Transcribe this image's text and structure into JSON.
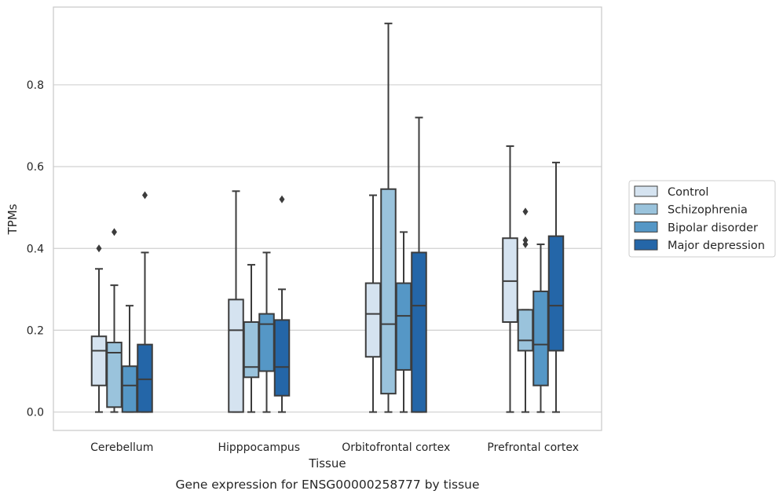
{
  "chart_data": {
    "type": "box",
    "ylabel": "TPMs",
    "xlabel": "Tissue",
    "caption": "Gene expression for ENSG00000258777 by tissue",
    "ylim": [
      -0.045,
      0.99
    ],
    "yticks": [
      "0.0",
      "0.2",
      "0.4",
      "0.6",
      "0.8"
    ],
    "grid": true,
    "legend_position": "right",
    "categories": [
      "Cerebellum",
      "Hipppocampus",
      "Orbitofrontal cortex",
      "Prefrontal cortex"
    ],
    "series": [
      {
        "name": "Control",
        "color": "#d5e3f0",
        "boxes": [
          {
            "whislo": 0.0,
            "q1": 0.065,
            "med": 0.15,
            "q3": 0.185,
            "whishi": 0.35,
            "fliers": [
              0.4
            ]
          },
          {
            "whislo": 0.0,
            "q1": 0.0,
            "med": 0.2,
            "q3": 0.275,
            "whishi": 0.54,
            "fliers": []
          },
          {
            "whislo": 0.0,
            "q1": 0.135,
            "med": 0.24,
            "q3": 0.315,
            "whishi": 0.53,
            "fliers": []
          },
          {
            "whislo": 0.0,
            "q1": 0.22,
            "med": 0.32,
            "q3": 0.425,
            "whishi": 0.65,
            "fliers": []
          }
        ]
      },
      {
        "name": "Schizophrenia",
        "color": "#9ac3dc",
        "boxes": [
          {
            "whislo": 0.0,
            "q1": 0.012,
            "med": 0.145,
            "q3": 0.17,
            "whishi": 0.31,
            "fliers": [
              0.44
            ]
          },
          {
            "whislo": 0.0,
            "q1": 0.085,
            "med": 0.11,
            "q3": 0.22,
            "whishi": 0.36,
            "fliers": []
          },
          {
            "whislo": 0.0,
            "q1": 0.045,
            "med": 0.215,
            "q3": 0.545,
            "whishi": 0.95,
            "fliers": []
          },
          {
            "whislo": 0.0,
            "q1": 0.15,
            "med": 0.175,
            "q3": 0.25,
            "whishi": 0.25,
            "fliers": [
              0.41,
              0.42,
              0.49
            ]
          }
        ]
      },
      {
        "name": "Bipolar disorder",
        "color": "#5597c6",
        "boxes": [
          {
            "whislo": 0.0,
            "q1": 0.0,
            "med": 0.065,
            "q3": 0.112,
            "whishi": 0.26,
            "fliers": []
          },
          {
            "whislo": 0.0,
            "q1": 0.1,
            "med": 0.215,
            "q3": 0.24,
            "whishi": 0.39,
            "fliers": []
          },
          {
            "whislo": 0.0,
            "q1": 0.103,
            "med": 0.235,
            "q3": 0.315,
            "whishi": 0.44,
            "fliers": []
          },
          {
            "whislo": 0.0,
            "q1": 0.065,
            "med": 0.165,
            "q3": 0.295,
            "whishi": 0.41,
            "fliers": []
          }
        ]
      },
      {
        "name": "Major depression",
        "color": "#2466a8",
        "boxes": [
          {
            "whislo": 0.0,
            "q1": 0.0,
            "med": 0.08,
            "q3": 0.165,
            "whishi": 0.39,
            "fliers": [
              0.53
            ]
          },
          {
            "whislo": 0.0,
            "q1": 0.04,
            "med": 0.11,
            "q3": 0.225,
            "whishi": 0.3,
            "fliers": [
              0.52
            ]
          },
          {
            "whislo": 0.0,
            "q1": 0.0,
            "med": 0.26,
            "q3": 0.39,
            "whishi": 0.72,
            "fliers": []
          },
          {
            "whislo": 0.0,
            "q1": 0.15,
            "med": 0.26,
            "q3": 0.43,
            "whishi": 0.61,
            "fliers": []
          }
        ]
      }
    ]
  }
}
